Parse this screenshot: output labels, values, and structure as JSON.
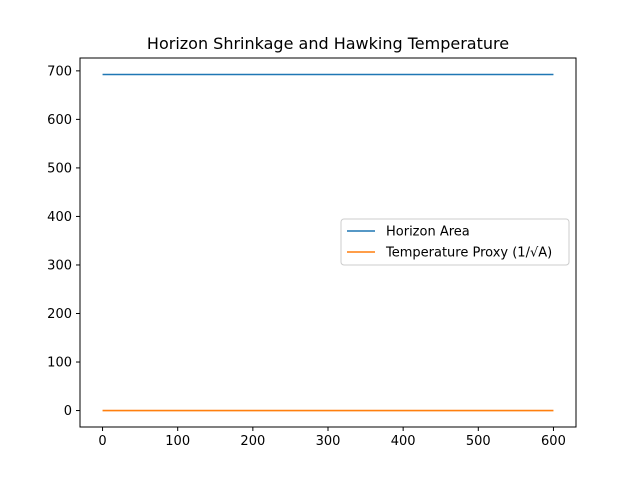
{
  "chart_data": {
    "type": "line",
    "title": "Horizon Shrinkage and Hawking Temperature",
    "xlabel": "",
    "ylabel": "",
    "xlim": [
      -30,
      630
    ],
    "ylim": [
      -33.9,
      726.5
    ],
    "x_ticks": [
      0,
      100,
      200,
      300,
      400,
      500,
      600
    ],
    "y_ticks": [
      0,
      100,
      200,
      300,
      400,
      500,
      600,
      700
    ],
    "grid": false,
    "legend_position": "center-right",
    "series": [
      {
        "name": "Horizon Area",
        "color": "#1f77b4",
        "x": [
          0,
          600
        ],
        "y": [
          692.5,
          692.5
        ]
      },
      {
        "name": "Temperature Proxy (1/√A)",
        "color": "#ff7f0e",
        "x": [
          0,
          600
        ],
        "y": [
          0.038,
          0.038
        ]
      }
    ]
  }
}
